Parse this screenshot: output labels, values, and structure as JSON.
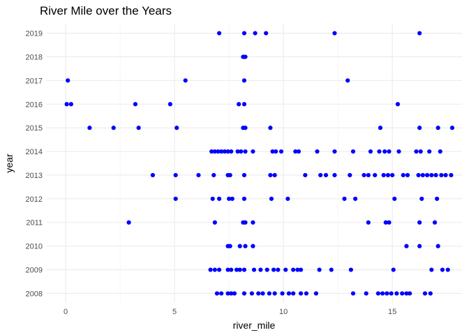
{
  "chart_data": {
    "type": "scatter",
    "title": "River Mile over the Years",
    "xlabel": "river_mile",
    "ylabel": "year",
    "xlim": [
      -0.9,
      18.2
    ],
    "ylim": [
      2007.6,
      2019.4
    ],
    "x_ticks": [
      0,
      5,
      10,
      15
    ],
    "x_tick_labels": [
      "0",
      "5",
      "10",
      "15"
    ],
    "y_ticks": [
      2008,
      2009,
      2010,
      2011,
      2012,
      2013,
      2014,
      2015,
      2016,
      2017,
      2018,
      2019
    ],
    "y_tick_labels": [
      "2008",
      "2009",
      "2010",
      "2011",
      "2012",
      "2013",
      "2014",
      "2015",
      "2016",
      "2017",
      "2018",
      "2019"
    ],
    "grid": true,
    "legend": "none",
    "point_color": "#0000ff",
    "points": [
      {
        "x": 7.05,
        "y": 2019
      },
      {
        "x": 8.2,
        "y": 2019
      },
      {
        "x": 8.7,
        "y": 2019
      },
      {
        "x": 9.2,
        "y": 2019
      },
      {
        "x": 12.35,
        "y": 2019
      },
      {
        "x": 16.25,
        "y": 2019
      },
      {
        "x": 8.15,
        "y": 2018
      },
      {
        "x": 8.2,
        "y": 2018
      },
      {
        "x": 8.25,
        "y": 2018
      },
      {
        "x": 0.1,
        "y": 2017
      },
      {
        "x": 5.5,
        "y": 2017
      },
      {
        "x": 8.2,
        "y": 2017
      },
      {
        "x": 12.95,
        "y": 2017
      },
      {
        "x": 0.05,
        "y": 2016
      },
      {
        "x": 0.25,
        "y": 2016
      },
      {
        "x": 3.2,
        "y": 2016
      },
      {
        "x": 4.8,
        "y": 2016
      },
      {
        "x": 7.95,
        "y": 2016
      },
      {
        "x": 8.2,
        "y": 2016
      },
      {
        "x": 15.25,
        "y": 2016
      },
      {
        "x": 1.1,
        "y": 2015
      },
      {
        "x": 2.2,
        "y": 2015
      },
      {
        "x": 3.35,
        "y": 2015
      },
      {
        "x": 5.1,
        "y": 2015
      },
      {
        "x": 8.15,
        "y": 2015
      },
      {
        "x": 8.25,
        "y": 2015
      },
      {
        "x": 9.4,
        "y": 2015
      },
      {
        "x": 14.45,
        "y": 2015
      },
      {
        "x": 16.25,
        "y": 2015
      },
      {
        "x": 17.1,
        "y": 2015
      },
      {
        "x": 17.75,
        "y": 2015
      },
      {
        "x": 6.7,
        "y": 2014
      },
      {
        "x": 6.85,
        "y": 2014
      },
      {
        "x": 7.0,
        "y": 2014
      },
      {
        "x": 7.15,
        "y": 2014
      },
      {
        "x": 7.3,
        "y": 2014
      },
      {
        "x": 7.45,
        "y": 2014
      },
      {
        "x": 7.6,
        "y": 2014
      },
      {
        "x": 7.9,
        "y": 2014
      },
      {
        "x": 8.05,
        "y": 2014
      },
      {
        "x": 8.25,
        "y": 2014
      },
      {
        "x": 8.6,
        "y": 2014
      },
      {
        "x": 9.5,
        "y": 2014
      },
      {
        "x": 9.65,
        "y": 2014
      },
      {
        "x": 9.9,
        "y": 2014
      },
      {
        "x": 10.55,
        "y": 2014
      },
      {
        "x": 10.7,
        "y": 2014
      },
      {
        "x": 11.55,
        "y": 2014
      },
      {
        "x": 12.35,
        "y": 2014
      },
      {
        "x": 13.2,
        "y": 2014
      },
      {
        "x": 14.0,
        "y": 2014
      },
      {
        "x": 14.4,
        "y": 2014
      },
      {
        "x": 14.65,
        "y": 2014
      },
      {
        "x": 14.85,
        "y": 2014
      },
      {
        "x": 15.3,
        "y": 2014
      },
      {
        "x": 16.1,
        "y": 2014
      },
      {
        "x": 16.3,
        "y": 2014
      },
      {
        "x": 16.7,
        "y": 2014
      },
      {
        "x": 17.2,
        "y": 2014
      },
      {
        "x": 4.0,
        "y": 2013
      },
      {
        "x": 5.05,
        "y": 2013
      },
      {
        "x": 6.1,
        "y": 2013
      },
      {
        "x": 6.8,
        "y": 2013
      },
      {
        "x": 7.45,
        "y": 2013
      },
      {
        "x": 7.55,
        "y": 2013
      },
      {
        "x": 8.2,
        "y": 2013
      },
      {
        "x": 9.4,
        "y": 2013
      },
      {
        "x": 9.6,
        "y": 2013
      },
      {
        "x": 11.0,
        "y": 2013
      },
      {
        "x": 11.7,
        "y": 2013
      },
      {
        "x": 11.95,
        "y": 2013
      },
      {
        "x": 12.35,
        "y": 2013
      },
      {
        "x": 13.05,
        "y": 2013
      },
      {
        "x": 13.7,
        "y": 2013
      },
      {
        "x": 13.9,
        "y": 2013
      },
      {
        "x": 14.2,
        "y": 2013
      },
      {
        "x": 14.6,
        "y": 2013
      },
      {
        "x": 14.8,
        "y": 2013
      },
      {
        "x": 15.0,
        "y": 2013
      },
      {
        "x": 15.5,
        "y": 2013
      },
      {
        "x": 15.7,
        "y": 2013
      },
      {
        "x": 16.2,
        "y": 2013
      },
      {
        "x": 16.4,
        "y": 2013
      },
      {
        "x": 16.6,
        "y": 2013
      },
      {
        "x": 16.8,
        "y": 2013
      },
      {
        "x": 17.0,
        "y": 2013
      },
      {
        "x": 17.25,
        "y": 2013
      },
      {
        "x": 17.45,
        "y": 2013
      },
      {
        "x": 17.7,
        "y": 2013
      },
      {
        "x": 5.05,
        "y": 2012
      },
      {
        "x": 6.75,
        "y": 2012
      },
      {
        "x": 7.05,
        "y": 2012
      },
      {
        "x": 7.5,
        "y": 2012
      },
      {
        "x": 7.65,
        "y": 2012
      },
      {
        "x": 8.2,
        "y": 2012
      },
      {
        "x": 9.45,
        "y": 2012
      },
      {
        "x": 10.2,
        "y": 2012
      },
      {
        "x": 12.8,
        "y": 2012
      },
      {
        "x": 13.3,
        "y": 2012
      },
      {
        "x": 15.1,
        "y": 2012
      },
      {
        "x": 16.35,
        "y": 2012
      },
      {
        "x": 17.05,
        "y": 2012
      },
      {
        "x": 2.9,
        "y": 2011
      },
      {
        "x": 6.85,
        "y": 2011
      },
      {
        "x": 8.15,
        "y": 2011
      },
      {
        "x": 8.25,
        "y": 2011
      },
      {
        "x": 8.6,
        "y": 2011
      },
      {
        "x": 13.9,
        "y": 2011
      },
      {
        "x": 14.7,
        "y": 2011
      },
      {
        "x": 14.85,
        "y": 2011
      },
      {
        "x": 16.25,
        "y": 2011
      },
      {
        "x": 16.95,
        "y": 2011
      },
      {
        "x": 7.45,
        "y": 2010
      },
      {
        "x": 7.55,
        "y": 2010
      },
      {
        "x": 8.0,
        "y": 2010
      },
      {
        "x": 8.25,
        "y": 2010
      },
      {
        "x": 8.6,
        "y": 2010
      },
      {
        "x": 15.65,
        "y": 2010
      },
      {
        "x": 16.25,
        "y": 2010
      },
      {
        "x": 17.1,
        "y": 2010
      },
      {
        "x": 6.65,
        "y": 2009
      },
      {
        "x": 6.85,
        "y": 2009
      },
      {
        "x": 7.05,
        "y": 2009
      },
      {
        "x": 7.45,
        "y": 2009
      },
      {
        "x": 7.6,
        "y": 2009
      },
      {
        "x": 7.85,
        "y": 2009
      },
      {
        "x": 8.0,
        "y": 2009
      },
      {
        "x": 8.2,
        "y": 2009
      },
      {
        "x": 8.65,
        "y": 2009
      },
      {
        "x": 8.95,
        "y": 2009
      },
      {
        "x": 9.25,
        "y": 2009
      },
      {
        "x": 9.55,
        "y": 2009
      },
      {
        "x": 9.75,
        "y": 2009
      },
      {
        "x": 10.1,
        "y": 2009
      },
      {
        "x": 10.45,
        "y": 2009
      },
      {
        "x": 10.65,
        "y": 2009
      },
      {
        "x": 10.8,
        "y": 2009
      },
      {
        "x": 11.65,
        "y": 2009
      },
      {
        "x": 12.2,
        "y": 2009
      },
      {
        "x": 13.1,
        "y": 2009
      },
      {
        "x": 15.05,
        "y": 2009
      },
      {
        "x": 16.8,
        "y": 2009
      },
      {
        "x": 17.3,
        "y": 2009
      },
      {
        "x": 17.55,
        "y": 2009
      },
      {
        "x": 6.95,
        "y": 2008
      },
      {
        "x": 7.15,
        "y": 2008
      },
      {
        "x": 7.45,
        "y": 2008
      },
      {
        "x": 7.6,
        "y": 2008
      },
      {
        "x": 7.75,
        "y": 2008
      },
      {
        "x": 8.2,
        "y": 2008
      },
      {
        "x": 8.55,
        "y": 2008
      },
      {
        "x": 8.85,
        "y": 2008
      },
      {
        "x": 9.05,
        "y": 2008
      },
      {
        "x": 9.35,
        "y": 2008
      },
      {
        "x": 9.6,
        "y": 2008
      },
      {
        "x": 9.95,
        "y": 2008
      },
      {
        "x": 10.25,
        "y": 2008
      },
      {
        "x": 10.45,
        "y": 2008
      },
      {
        "x": 10.8,
        "y": 2008
      },
      {
        "x": 11.05,
        "y": 2008
      },
      {
        "x": 11.5,
        "y": 2008
      },
      {
        "x": 13.2,
        "y": 2008
      },
      {
        "x": 13.8,
        "y": 2008
      },
      {
        "x": 14.35,
        "y": 2008
      },
      {
        "x": 14.55,
        "y": 2008
      },
      {
        "x": 14.75,
        "y": 2008
      },
      {
        "x": 14.95,
        "y": 2008
      },
      {
        "x": 15.2,
        "y": 2008
      },
      {
        "x": 15.45,
        "y": 2008
      },
      {
        "x": 15.65,
        "y": 2008
      },
      {
        "x": 15.8,
        "y": 2008
      },
      {
        "x": 16.5,
        "y": 2008
      },
      {
        "x": 16.75,
        "y": 2008
      }
    ]
  }
}
